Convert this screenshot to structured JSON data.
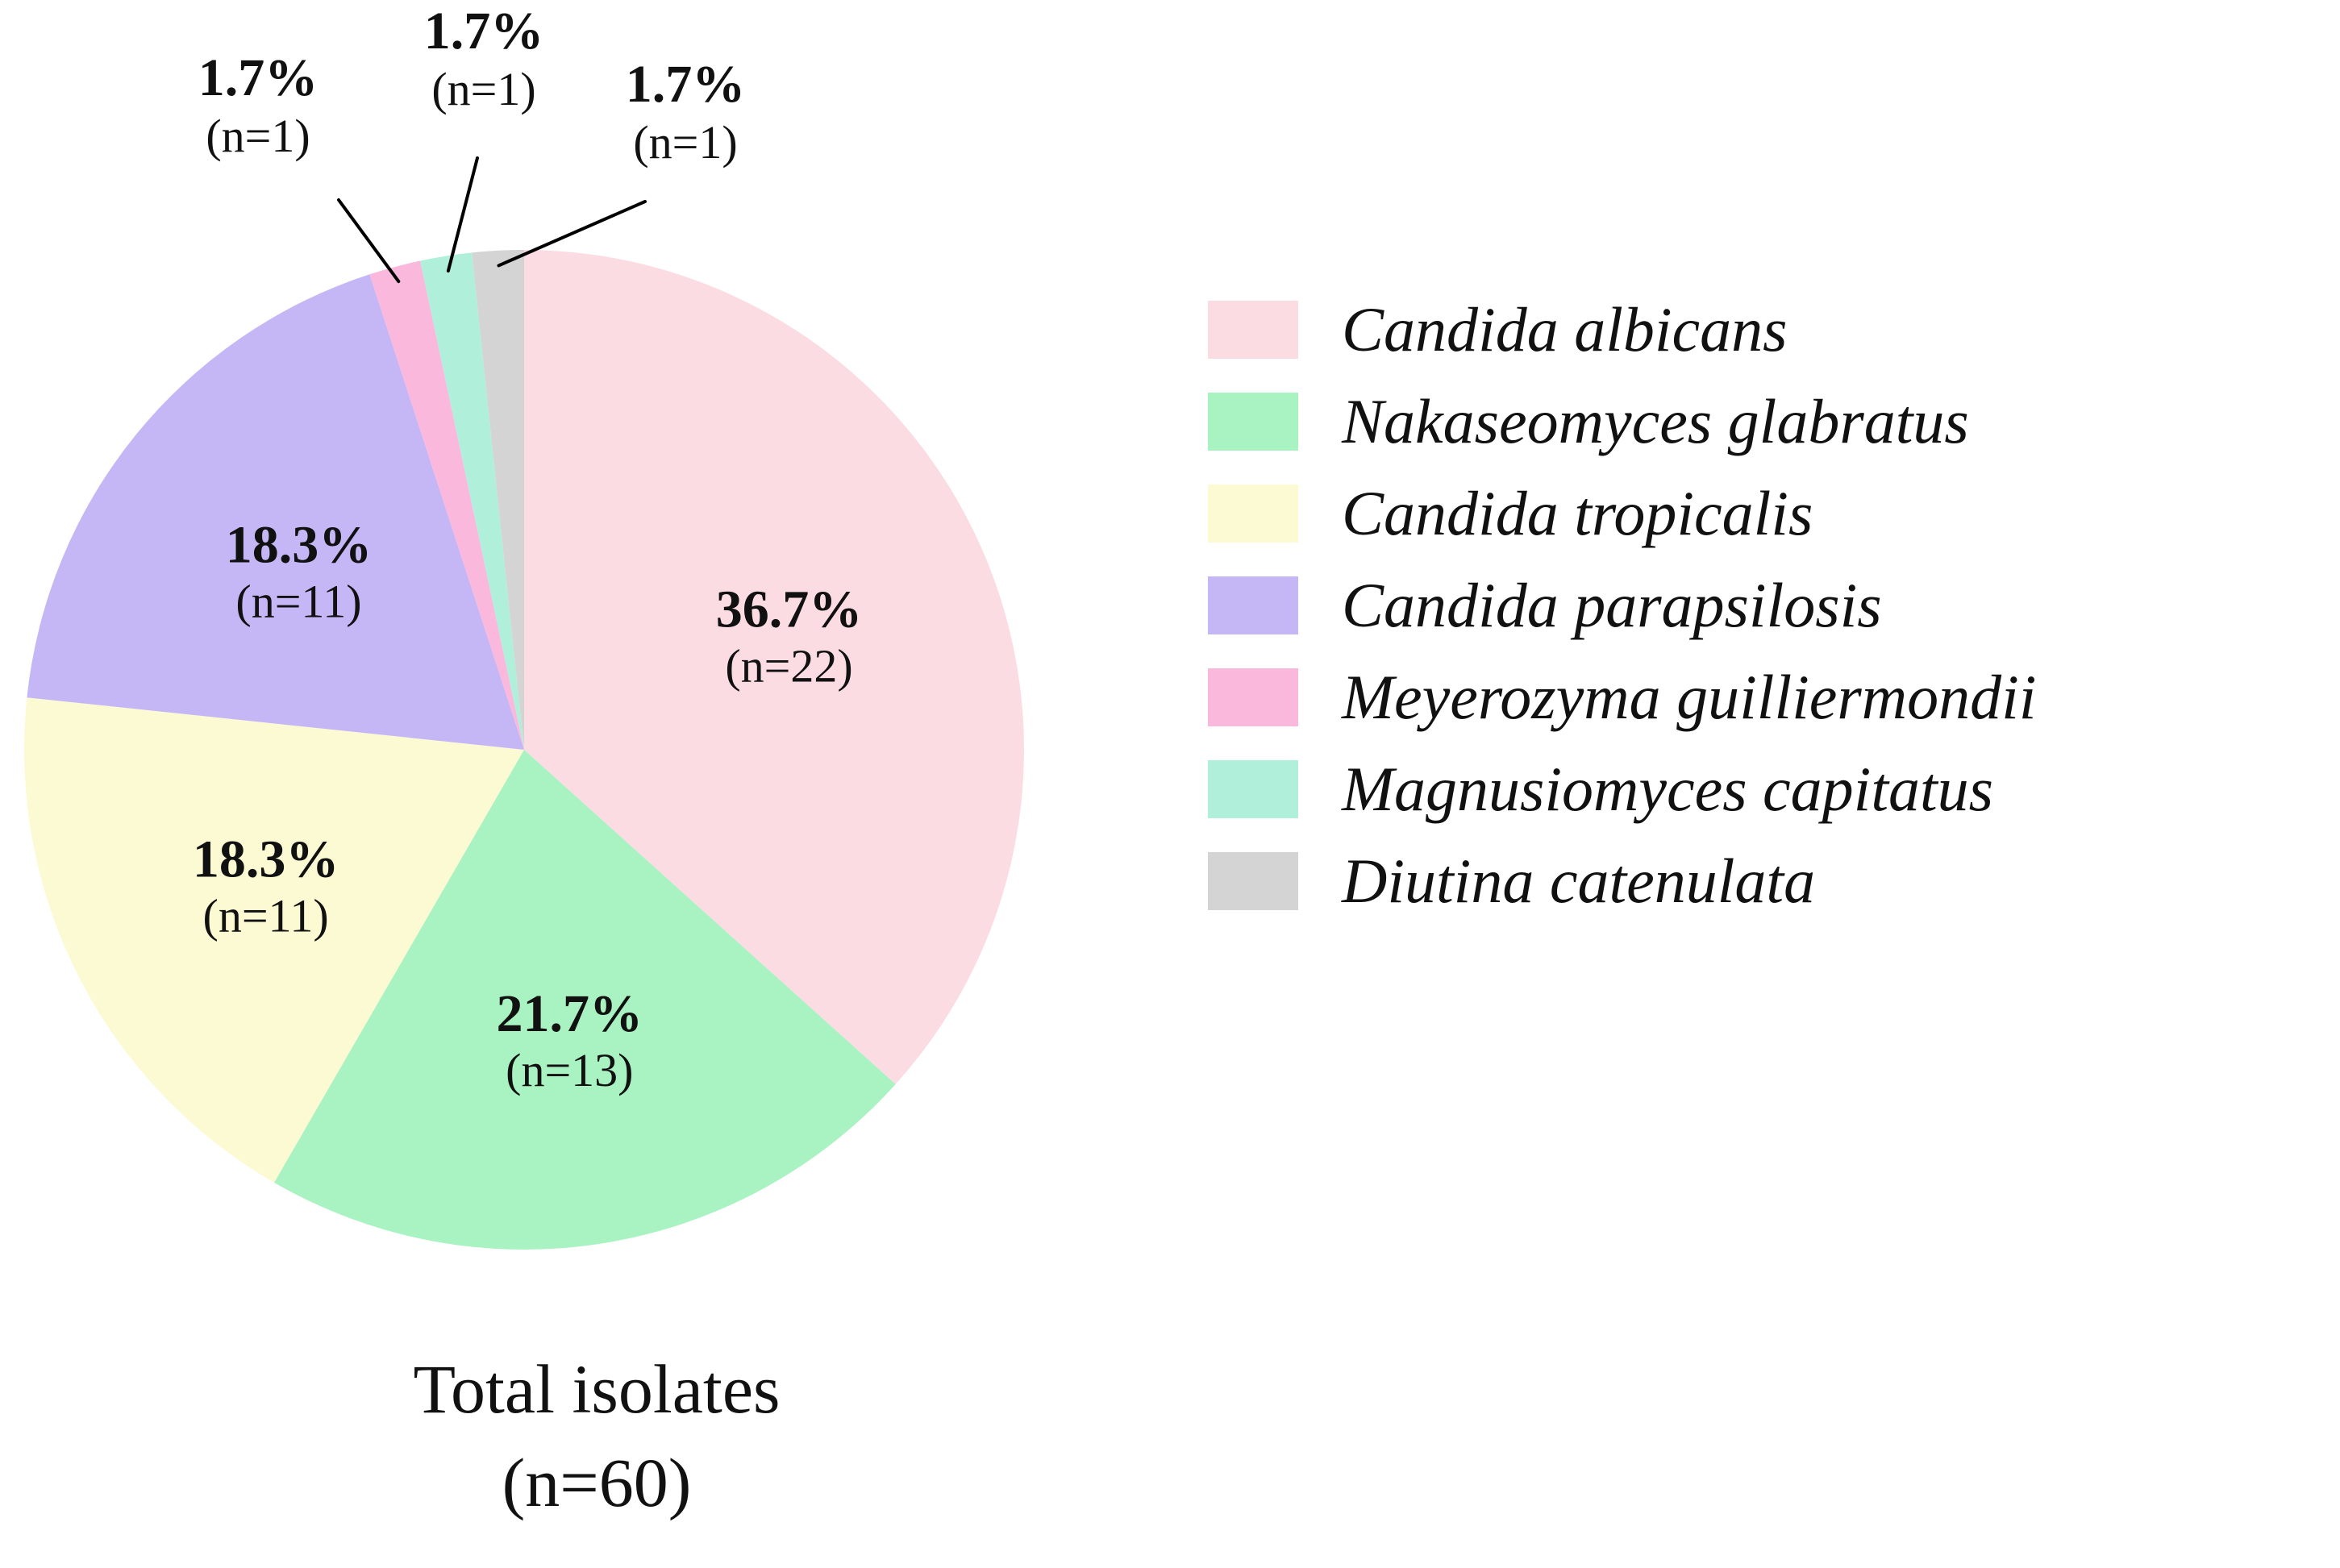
{
  "chart_data": {
    "type": "pie",
    "title": "Total isolates",
    "subtitle": "(n=60)",
    "total": 60,
    "legend_position": "right",
    "start_angle_deg": 0,
    "direction": "clockwise",
    "series": [
      {
        "id": "albicans",
        "name": "Candida albicans",
        "count": 22,
        "percent": 36.7,
        "percent_label": "36.7%",
        "n_label": "(n=22)",
        "color": "#FCDCE3"
      },
      {
        "id": "glabratus",
        "name": "Nakaseomyces glabratus",
        "count": 13,
        "percent": 21.7,
        "percent_label": "21.7%",
        "n_label": "(n=13)",
        "color": "#A9F2C1"
      },
      {
        "id": "tropicalis",
        "name": "Candida tropicalis",
        "count": 11,
        "percent": 18.3,
        "percent_label": "18.3%",
        "n_label": "(n=11)",
        "color": "#FCFAD2"
      },
      {
        "id": "parapsilosis",
        "name": "Candida parapsilosis",
        "count": 11,
        "percent": 18.3,
        "percent_label": "18.3%",
        "n_label": "(n=11)",
        "color": "#C5B6F6"
      },
      {
        "id": "guilliermondii",
        "name": "Meyerozyma guilliermondii",
        "count": 1,
        "percent": 1.7,
        "percent_label": "1.7%",
        "n_label": "(n=1)",
        "color": "#FAB8DD"
      },
      {
        "id": "capitatus",
        "name": "Magnusiomyces capitatus",
        "count": 1,
        "percent": 1.7,
        "percent_label": "1.7%",
        "n_label": "(n=1)",
        "color": "#B0F0DB"
      },
      {
        "id": "catenulata",
        "name": "Diutina catenulata",
        "count": 1,
        "percent": 1.7,
        "percent_label": "1.7%",
        "n_label": "(n=1)",
        "color": "#D4D4D4"
      }
    ]
  }
}
